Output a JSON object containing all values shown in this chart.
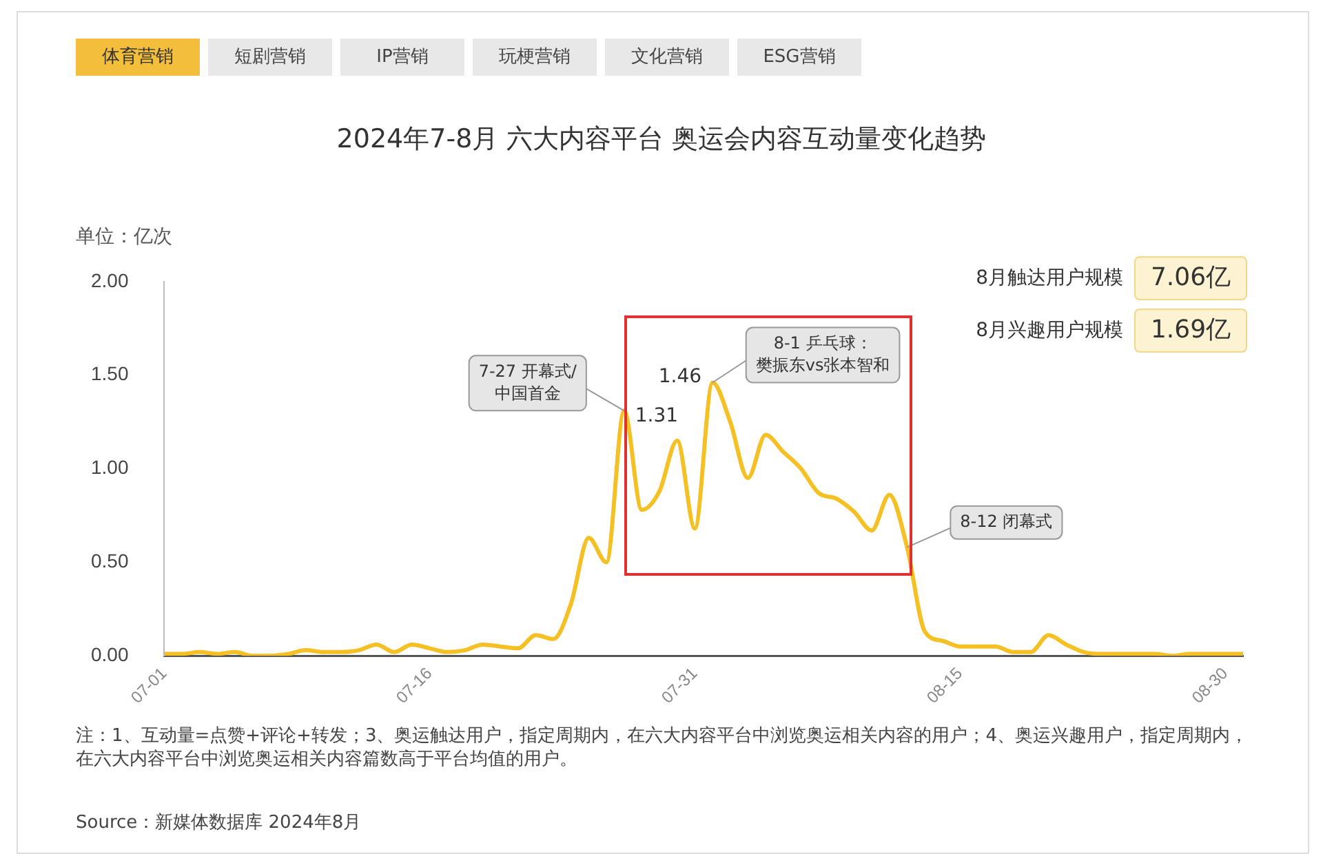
{
  "chart_data": {
    "type": "line",
    "title": "2024年7-8月 六大内容平台 奥运会内容互动量变化趋势",
    "ylabel": "单位：亿次",
    "x": [
      "--07-01",
      "--07-02",
      "--07-03",
      "--07-04",
      "--07-05",
      "--07-06",
      "--07-07",
      "--07-08",
      "--07-09",
      "--07-10",
      "--07-11",
      "--07-12",
      "--07-13",
      "--07-14",
      "--07-15",
      "--07-16",
      "--07-17",
      "--07-18",
      "--07-19",
      "--07-20",
      "--07-21",
      "--07-22",
      "--07-23",
      "--07-24",
      "--07-25",
      "--07-26",
      "--07-27",
      "--07-28",
      "--07-29",
      "--07-30",
      "--07-31",
      "--08-01",
      "--08-02",
      "--08-03",
      "--08-04",
      "--08-05",
      "--08-06",
      "--08-07",
      "--08-08",
      "--08-09",
      "--08-10",
      "--08-11",
      "--08-12",
      "--08-13",
      "--08-14",
      "--08-15",
      "--08-16",
      "--08-17",
      "--08-18",
      "--08-19",
      "--08-20",
      "--08-21",
      "--08-22",
      "--08-23",
      "--08-24",
      "--08-25",
      "--08-26",
      "--08-27",
      "--08-28",
      "--08-29",
      "--08-30",
      "--08-31"
    ],
    "xlim": [
      "--07-01",
      "--08-31"
    ],
    "xticks": [
      {
        "value": "--07-01",
        "label": "07-01"
      },
      {
        "value": "--07-16",
        "label": "07-16"
      },
      {
        "value": "--07-31",
        "label": "07-31"
      },
      {
        "value": "--08-15",
        "label": "08-15"
      },
      {
        "value": "--08-30",
        "label": "08-30"
      }
    ],
    "series": [
      {
        "color": "#f5c024",
        "values": [
          0.01,
          0.01,
          0.02,
          0.01,
          0.02,
          0.0,
          0.0,
          0.01,
          0.03,
          0.02,
          0.02,
          0.03,
          0.06,
          0.02,
          0.06,
          0.04,
          0.02,
          0.03,
          0.06,
          0.05,
          0.04,
          0.11,
          0.09,
          0.28,
          0.63,
          0.5,
          1.31,
          0.78,
          0.88,
          1.15,
          0.68,
          1.46,
          1.25,
          0.95,
          1.18,
          1.09,
          1.0,
          0.87,
          0.84,
          0.77,
          0.67,
          0.86,
          0.58,
          0.13,
          0.08,
          0.05,
          0.05,
          0.05,
          0.02,
          0.02,
          0.11,
          0.06,
          0.02,
          0.01,
          0.01,
          0.01,
          0.01,
          0.0,
          0.01,
          0.01,
          0.01,
          0.01
        ],
        "value_labels": [
          null,
          null,
          null,
          null,
          null,
          null,
          null,
          null,
          null,
          null,
          null,
          null,
          null,
          null,
          null,
          null,
          null,
          null,
          null,
          null,
          null,
          null,
          null,
          null,
          null,
          null,
          "1.31",
          null,
          null,
          null,
          null,
          "1.46",
          null,
          null,
          null,
          null,
          null,
          null,
          null,
          null,
          null,
          null,
          null,
          null,
          null,
          null,
          null,
          null,
          null,
          null,
          null,
          null,
          null,
          null,
          null,
          null,
          null,
          null,
          null,
          null,
          null,
          null
        ]
      }
    ],
    "ylim": [
      0,
      2
    ],
    "yticks": [
      {
        "value": 0,
        "label": "0.00"
      },
      {
        "value": 0.5,
        "label": "0.50"
      },
      {
        "value": 1,
        "label": "1.00"
      },
      {
        "value": 1.5,
        "label": "1.50"
      },
      {
        "value": 2,
        "label": "2.00"
      }
    ],
    "grid": false,
    "legend": false,
    "marker": "none",
    "line_style": "solid",
    "annotations": [
      "体育营销",
      "短剧营销",
      "IP营销",
      "玩梗营销",
      "文化营销",
      "ESG营销",
      "8月触达用户规模",
      "7.06亿",
      "8月兴趣用户规模",
      "1.69亿",
      {
        "text": "7-27 开幕式/中国首金",
        "x": "--07-27",
        "y": 1.31
      },
      {
        "text": "8-1 乒乓球：樊振东vs张本智和",
        "x": "--08-01",
        "y": 1.46
      },
      {
        "text": "8-12 闭幕式",
        "x": "--08-12",
        "y": 0.58
      },
      "注：1、互动量=点赞+评论+转发；3、奥运触达用户，指定周期内，在六大内容平台中浏览奥运相关内容的用户；4、奥运兴趣用户，指定周期内，在六大内容平台中浏览奥运相关内容篇数高于平台均值的用户。",
      "Source：新媒体数据库 2024年8月"
    ]
  }
}
